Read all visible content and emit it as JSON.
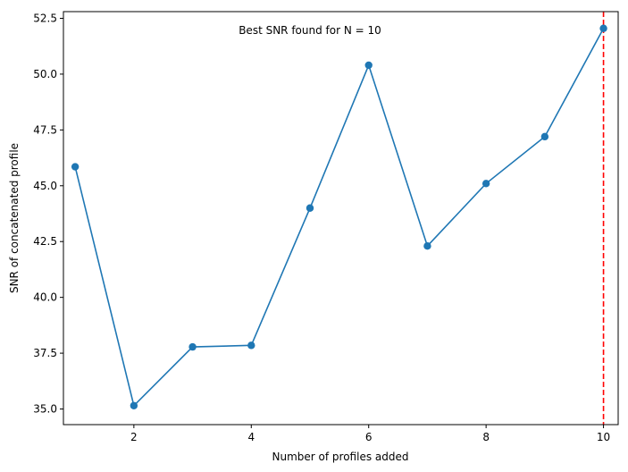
{
  "chart_data": {
    "type": "line",
    "title": "",
    "xlabel": "Number of profiles added",
    "ylabel": "SNR of concatenated profile",
    "xlim": [
      0.8,
      10.25
    ],
    "ylim": [
      34.3,
      52.8
    ],
    "xticks": [
      2,
      4,
      6,
      8,
      10
    ],
    "yticks": [
      35.0,
      37.5,
      40.0,
      42.5,
      45.0,
      47.5,
      50.0,
      52.5
    ],
    "ytick_labels": [
      "35.0",
      "37.5",
      "40.0",
      "42.5",
      "45.0",
      "47.5",
      "50.0",
      "52.5"
    ],
    "x": [
      1,
      2,
      3,
      4,
      5,
      6,
      7,
      8,
      9,
      10
    ],
    "series": [
      {
        "values": [
          45.85,
          35.15,
          37.78,
          37.85,
          44.0,
          50.4,
          42.3,
          45.1,
          47.2,
          52.05
        ]
      }
    ],
    "annotations": [
      {
        "text": "Best SNR found for N = 10",
        "x": 5.0,
        "y": 51.8
      }
    ],
    "vline": {
      "x": 10,
      "style": "dashed"
    },
    "colors": {
      "series": "#1f77b4",
      "vline": "#ff0000"
    },
    "grid": false,
    "legend": "none"
  }
}
